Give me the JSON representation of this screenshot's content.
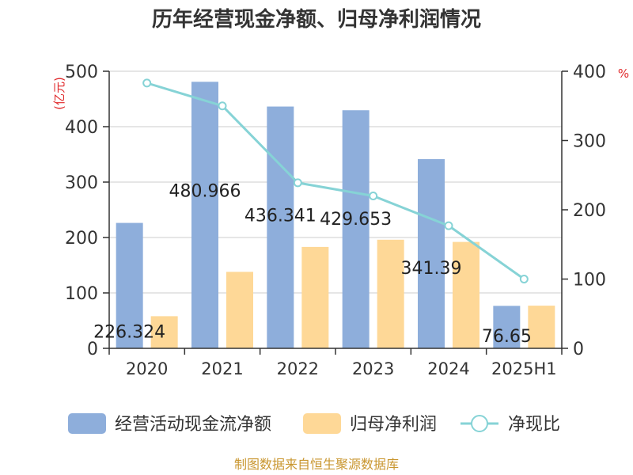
{
  "title": "历年经营现金净额、归母净利润情况",
  "left_unit": "(亿元)",
  "right_unit": "%",
  "source": "制图数据来自恒生聚源数据库",
  "colors": {
    "operating_cash": "#8eaedb",
    "net_profit": "#fed897",
    "ratio": "#86d3d6",
    "axis": "#333333",
    "grid": "#cccccc"
  },
  "chart_data": {
    "type": "bar",
    "title": "历年经营现金净额、归母净利润情况",
    "categories": [
      "2020",
      "2021",
      "2022",
      "2023",
      "2024",
      "2025H1"
    ],
    "y_left": {
      "min": 0,
      "max": 500,
      "ticks": [
        0,
        100,
        200,
        300,
        400,
        500
      ],
      "label": "(亿元)"
    },
    "y_right": {
      "min": 0,
      "max": 400,
      "ticks": [
        0,
        100,
        200,
        300,
        400
      ],
      "label": "%"
    },
    "grid": true,
    "legend_position": "bottom",
    "series": [
      {
        "name": "经营活动现金流净额",
        "type": "bar",
        "axis": "left",
        "values": [
          226.324,
          480.966,
          436.341,
          429.653,
          341.39,
          76.65
        ],
        "labels": [
          "226.324",
          "480.966",
          "436.341",
          "429.653",
          "341.39",
          "76.65"
        ]
      },
      {
        "name": "归母净利润",
        "type": "bar",
        "axis": "left",
        "values": [
          58,
          138,
          183,
          196,
          192,
          77
        ]
      },
      {
        "name": "净现比",
        "type": "line",
        "axis": "right",
        "values": [
          383,
          350,
          239,
          220,
          177,
          100
        ]
      }
    ]
  }
}
